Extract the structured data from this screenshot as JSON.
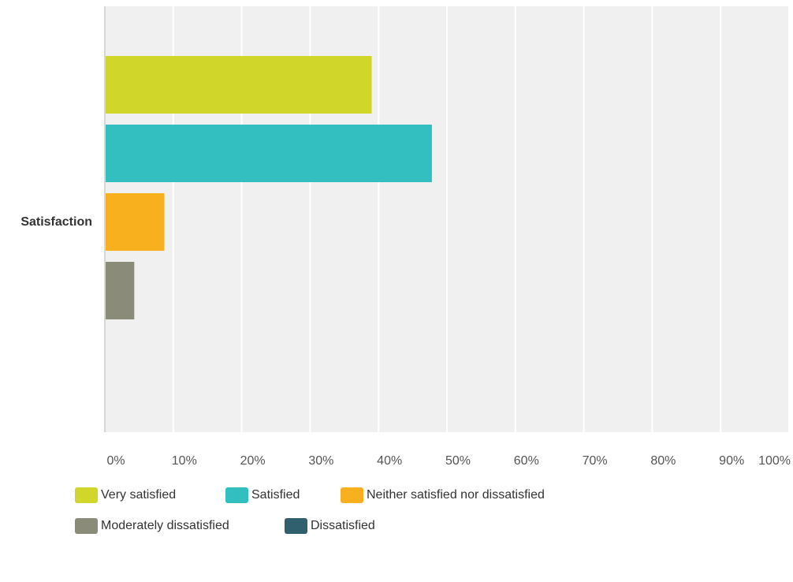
{
  "chart_data": {
    "type": "bar",
    "orientation": "horizontal",
    "title": "",
    "xlabel": "",
    "ylabel": "",
    "categories": [
      "Satisfaction"
    ],
    "xlim": [
      0,
      100
    ],
    "x_ticks": [
      "0%",
      "10%",
      "20%",
      "30%",
      "40%",
      "50%",
      "60%",
      "70%",
      "80%",
      "90%",
      "100%"
    ],
    "grid": true,
    "legend_position": "bottom",
    "series": [
      {
        "name": "Very satisfied",
        "values": [
          39.0
        ],
        "color": "#d0d62a"
      },
      {
        "name": "Satisfied",
        "values": [
          47.8
        ],
        "color": "#33bec0"
      },
      {
        "name": "Neither satisfied nor dissatisfied",
        "values": [
          8.7
        ],
        "color": "#f8b01e"
      },
      {
        "name": "Moderately dissatisfied",
        "values": [
          4.3
        ],
        "color": "#8b8b7a"
      },
      {
        "name": "Dissatisfied",
        "values": [
          0
        ],
        "color": "#305f6e"
      }
    ],
    "plot_background": "#f0f0f0",
    "gridline_color": "#ffffff"
  }
}
